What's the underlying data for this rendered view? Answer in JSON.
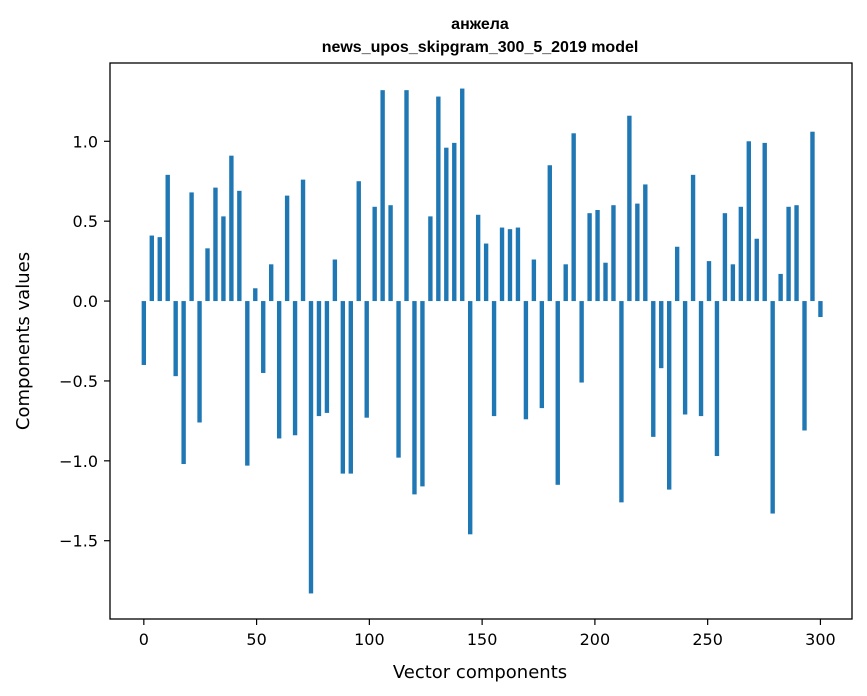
{
  "chart_data": {
    "type": "bar",
    "title": "анжела",
    "subtitle": "news_upos_skipgram_300_5_2019 model",
    "xlabel": "Vector components",
    "ylabel": "Components values",
    "xlim": [
      -15,
      314
    ],
    "ylim": [
      -1.99,
      1.49
    ],
    "xticks": [
      0,
      50,
      100,
      150,
      200,
      250,
      300
    ],
    "yticks": [
      -1.5,
      -1.0,
      -0.5,
      0.0,
      0.5,
      1.0
    ],
    "ytick_labels": [
      "−1.5",
      "−1.0",
      "−0.5",
      "0.0",
      "0.5",
      "1.0"
    ],
    "xtick_labels": [
      "0",
      "50",
      "100",
      "150",
      "200",
      "250",
      "300"
    ],
    "bar_color": "#1f77b4",
    "values": [
      -0.4,
      0.41,
      0.4,
      0.79,
      -0.47,
      -1.02,
      0.68,
      -0.76,
      0.33,
      0.71,
      0.53,
      0.91,
      0.69,
      -1.03,
      0.08,
      -0.45,
      0.23,
      -0.86,
      0.66,
      -0.84,
      0.76,
      -1.83,
      -0.72,
      -0.7,
      0.26,
      -1.08,
      -1.08,
      0.75,
      -0.73,
      0.59,
      1.32,
      0.6,
      -0.98,
      1.32,
      -1.21,
      -1.16,
      0.53,
      1.28,
      0.96,
      0.99,
      1.33,
      -1.46,
      0.54,
      0.36,
      -0.72,
      0.46,
      0.45,
      0.46,
      -0.74,
      0.26,
      -0.67,
      0.85,
      -1.15,
      0.23,
      1.05,
      -0.51,
      0.55,
      0.57,
      0.24,
      0.6,
      -1.26,
      1.16,
      0.61,
      0.73,
      -0.85,
      -0.42,
      -1.18,
      0.34,
      -0.71,
      0.79,
      -0.72,
      0.25,
      -0.97,
      0.55,
      0.23,
      0.59,
      1.0,
      0.39,
      0.99,
      -1.33,
      0.17,
      0.59,
      0.6,
      -0.81,
      1.06,
      -0.1
    ]
  }
}
